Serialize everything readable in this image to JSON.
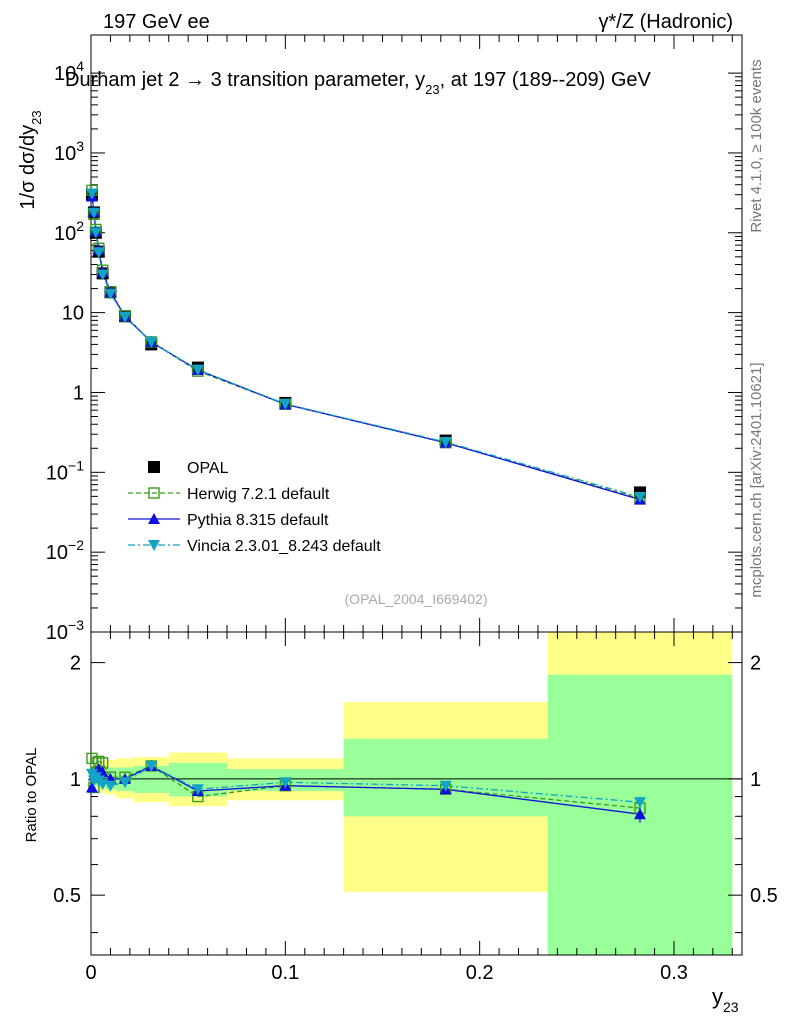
{
  "header": {
    "left": "197 GeV ee",
    "right": "γ*/Z (Hadronic)",
    "title": "Durham jet 2 → 3 transition parameter, y",
    "title_sub": "23",
    "title_tail": ", at 197 (189--209) GeV"
  },
  "side": {
    "rivet": "Rivet 4.1.0, ≥ 100k events",
    "mcplots": "mcplots.cern.ch [arXiv:2401.10621]"
  },
  "watermark": "(OPAL_2004_I669402)",
  "axes": {
    "ylabel_main": "1/σ  dσ/dy",
    "ylabel_main_sub": "23",
    "ylabel_ratio": "Ratio to OPAL",
    "xlabel": "y",
    "xlabel_sub": "23",
    "main_yticks": [
      {
        "v": 0.001,
        "base": "10",
        "exp": "−3"
      },
      {
        "v": 0.01,
        "base": "10",
        "exp": "−2"
      },
      {
        "v": 0.1,
        "base": "10",
        "exp": "−1"
      },
      {
        "v": 1,
        "base": "1",
        "exp": ""
      },
      {
        "v": 10,
        "base": "10",
        "exp": ""
      },
      {
        "v": 100,
        "base": "10",
        "exp": "2"
      },
      {
        "v": 1000,
        "base": "10",
        "exp": "3"
      },
      {
        "v": 10000,
        "base": "10",
        "exp": "4"
      }
    ],
    "ratio_yticks": [
      {
        "v": 0.5,
        "label": "0.5"
      },
      {
        "v": 1,
        "label": "1"
      },
      {
        "v": 2,
        "label": "2"
      }
    ],
    "xticks": [
      {
        "v": 0,
        "label": "0"
      },
      {
        "v": 0.1,
        "label": "0.1"
      },
      {
        "v": 0.2,
        "label": "0.2"
      },
      {
        "v": 0.3,
        "label": "0.3"
      }
    ]
  },
  "legend": [
    {
      "key": "opal",
      "label": "OPAL"
    },
    {
      "key": "herwig",
      "label": "Herwig 7.2.1 default"
    },
    {
      "key": "pythia",
      "label": "Pythia 8.315 default"
    },
    {
      "key": "vincia",
      "label": "Vincia 2.3.01_8.243 default"
    }
  ],
  "chart_data": {
    "type": "line",
    "title": "Durham jet 2 → 3 transition parameter, y23, at 197 (189--209) GeV",
    "xlabel": "y23",
    "ylabel": "1/σ dσ/dy23",
    "xlim": [
      0,
      0.335
    ],
    "ylim": [
      0.001,
      30000
    ],
    "yscale": "log",
    "ratio_ylim": [
      0.35,
      2.4
    ],
    "ratio_yscale": "log",
    "bins": [
      {
        "lo": 0.0,
        "hi": 0.001
      },
      {
        "lo": 0.001,
        "hi": 0.002
      },
      {
        "lo": 0.002,
        "hi": 0.003
      },
      {
        "lo": 0.003,
        "hi": 0.005
      },
      {
        "lo": 0.005,
        "hi": 0.007
      },
      {
        "lo": 0.007,
        "hi": 0.013
      },
      {
        "lo": 0.013,
        "hi": 0.022
      },
      {
        "lo": 0.022,
        "hi": 0.04
      },
      {
        "lo": 0.04,
        "hi": 0.07
      },
      {
        "lo": 0.07,
        "hi": 0.13
      },
      {
        "lo": 0.13,
        "hi": 0.235
      },
      {
        "lo": 0.235,
        "hi": 0.33
      }
    ],
    "x": [
      0.0005,
      0.0015,
      0.0025,
      0.004,
      0.006,
      0.01,
      0.0175,
      0.031,
      0.055,
      0.1,
      0.1825,
      0.2825
    ],
    "series": [
      {
        "name": "OPAL",
        "key": "opal",
        "color": "#000000",
        "values": [
          300,
          180,
          100,
          58,
          31,
          18,
          9.0,
          4.0,
          2.05,
          0.74,
          0.25,
          0.056
        ]
      },
      {
        "name": "Herwig 7.2.1 default",
        "key": "herwig",
        "color": "#3a9a1c",
        "values": [
          340,
          170,
          110,
          64,
          34,
          18.2,
          9.1,
          4.3,
          1.85,
          0.71,
          0.235,
          0.047
        ]
      },
      {
        "name": "Pythia 8.315 default",
        "key": "pythia",
        "color": "#1010dd",
        "values": [
          285,
          183,
          104,
          61,
          32,
          18.1,
          9.0,
          4.3,
          1.91,
          0.71,
          0.235,
          0.0455
        ]
      },
      {
        "name": "Vincia 2.3.01_8.243 default",
        "key": "vincia",
        "color": "#13a3c4",
        "values": [
          310,
          178,
          101,
          57,
          30,
          17.3,
          8.8,
          4.3,
          1.93,
          0.72,
          0.24,
          0.049
        ]
      }
    ],
    "ratios": [
      {
        "key": "herwig",
        "values": [
          1.13,
          0.95,
          1.1,
          1.11,
          1.1,
          1.01,
          1.01,
          1.08,
          0.9,
          0.96,
          0.94,
          0.84
        ]
      },
      {
        "key": "pythia",
        "values": [
          0.95,
          1.02,
          1.04,
          1.06,
          1.04,
          1.0,
          1.0,
          1.08,
          0.93,
          0.96,
          0.94,
          0.81
        ]
      },
      {
        "key": "vincia",
        "values": [
          1.03,
          0.99,
          1.01,
          0.99,
          0.97,
          0.96,
          0.98,
          1.08,
          0.94,
          0.98,
          0.96,
          0.87
        ]
      }
    ],
    "ratio_band_yellow": [
      [
        0.95,
        1.05
      ],
      [
        0.95,
        1.05
      ],
      [
        0.94,
        1.06
      ],
      [
        0.93,
        1.08
      ],
      [
        0.92,
        1.11
      ],
      [
        0.91,
        1.12
      ],
      [
        0.89,
        1.13
      ],
      [
        0.87,
        1.14
      ],
      [
        0.85,
        1.17
      ],
      [
        0.88,
        1.13
      ],
      [
        0.51,
        1.58
      ],
      [
        0.28,
        3.0
      ]
    ],
    "ratio_band_green": [
      [
        0.97,
        1.03
      ],
      [
        0.97,
        1.03
      ],
      [
        0.96,
        1.04
      ],
      [
        0.95,
        1.05
      ],
      [
        0.95,
        1.06
      ],
      [
        0.94,
        1.07
      ],
      [
        0.93,
        1.07
      ],
      [
        0.92,
        1.08
      ],
      [
        0.9,
        1.1
      ],
      [
        0.93,
        1.06
      ],
      [
        0.8,
        1.27
      ],
      [
        0.32,
        1.86
      ]
    ],
    "ratio_errors": {
      "pythia": [
        0.02,
        0.02,
        0.02,
        0.02,
        0.02,
        0.02,
        0.02,
        0.02,
        0.02,
        0.02,
        0.02,
        0.04
      ],
      "vincia": [
        0.02,
        0.02,
        0.02,
        0.02,
        0.02,
        0.02,
        0.02,
        0.02,
        0.02,
        0.02,
        0.02,
        0.03
      ]
    }
  }
}
